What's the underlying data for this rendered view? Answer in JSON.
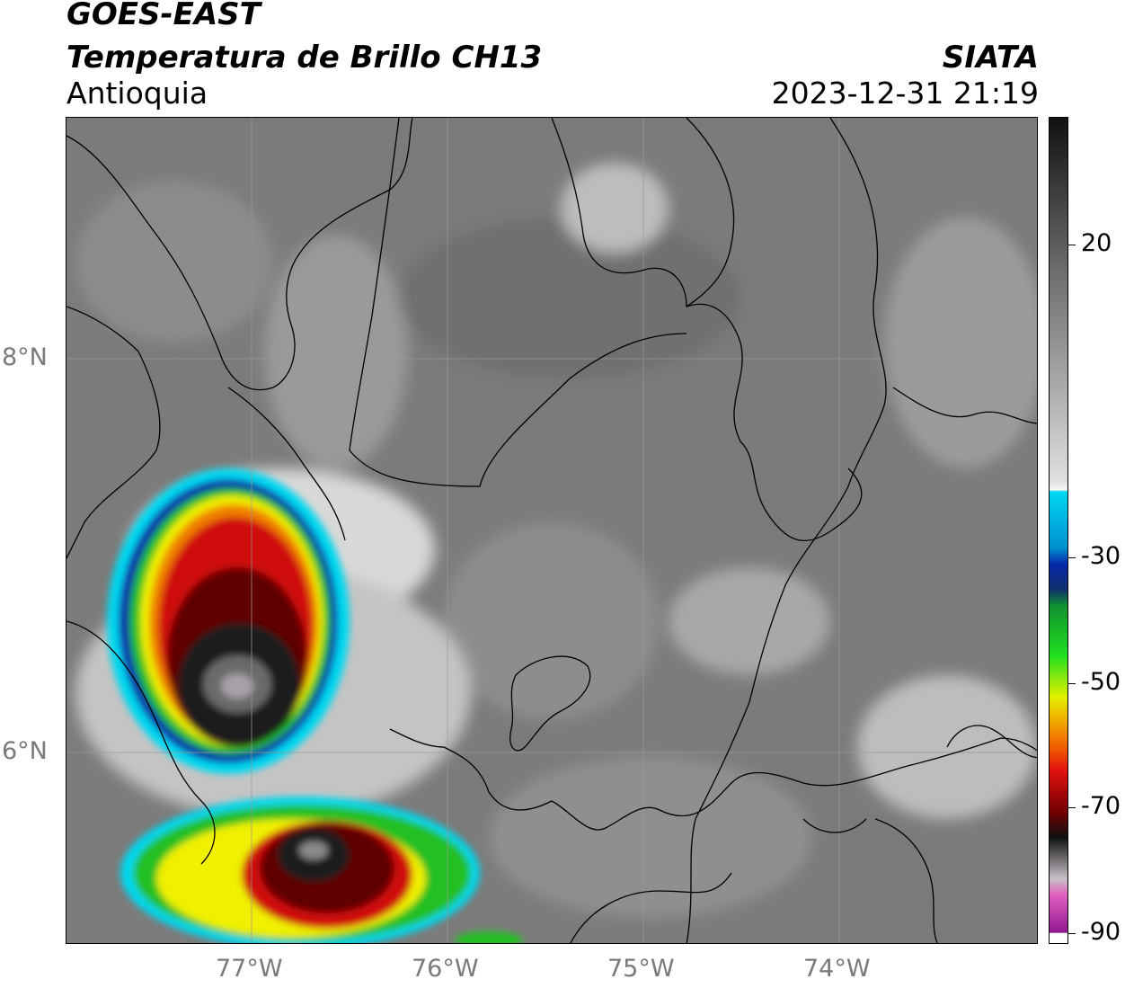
{
  "header": {
    "satellite": "GOES-EAST",
    "product": "Temperatura de Brillo CH13",
    "region": "Antioquia",
    "organization": "SIATA",
    "timestamp": "2023-12-31 21:19"
  },
  "map": {
    "lat_labels": [
      "8°N",
      "6°N"
    ],
    "lon_labels": [
      "77°W",
      "76°W",
      "75°W",
      "74°W"
    ]
  },
  "colorbar": {
    "tick_labels": [
      "20",
      "-30",
      "-50",
      "-70",
      "-90"
    ],
    "range": [
      -90,
      30
    ],
    "colors": {
      "cyan": "#00d8f0",
      "blue": "#0828a8",
      "green": "#20c020",
      "yellow": "#f0f000",
      "orange": "#f08000",
      "red": "#d01010",
      "dark_red": "#600000",
      "magenta": "#b030b0"
    }
  }
}
